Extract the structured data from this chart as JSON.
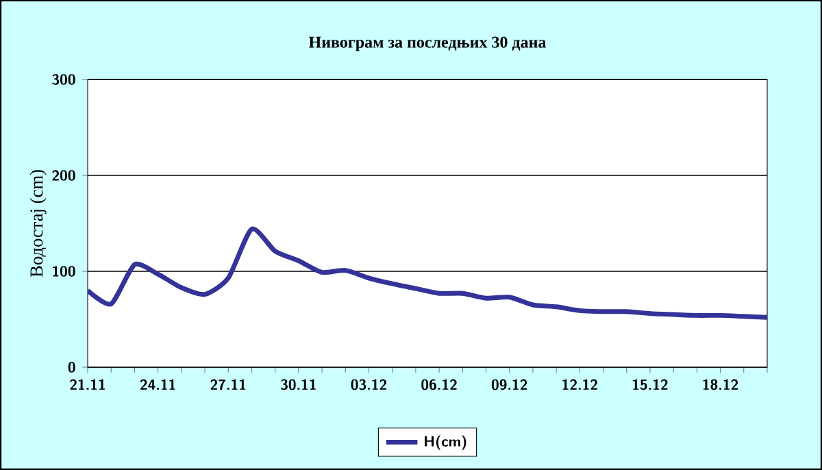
{
  "chart_data": {
    "type": "line",
    "title": "Нивограм за последњих 30 дана",
    "ylabel": "Водостај (cm)",
    "categories": [
      "21.11",
      null,
      null,
      "24.11",
      null,
      null,
      "27.11",
      null,
      null,
      "30.11",
      null,
      null,
      "03.12",
      null,
      null,
      "06.12",
      null,
      null,
      "09.12",
      null,
      null,
      "12.12",
      null,
      null,
      "15.12",
      null,
      null,
      "18.12",
      null,
      null
    ],
    "series": [
      {
        "name": "H(cm)",
        "color": "#333399",
        "values": [
          80,
          66,
          107,
          97,
          83,
          76,
          93,
          144,
          121,
          111,
          99,
          101,
          93,
          87,
          82,
          77,
          77,
          72,
          73,
          65,
          63,
          59,
          58,
          58,
          56,
          55,
          54,
          54,
          53,
          52
        ]
      }
    ],
    "ylim": [
      0,
      300
    ],
    "yticks": [
      0,
      100,
      200,
      300
    ],
    "grid": "y",
    "legend": "bottom"
  }
}
